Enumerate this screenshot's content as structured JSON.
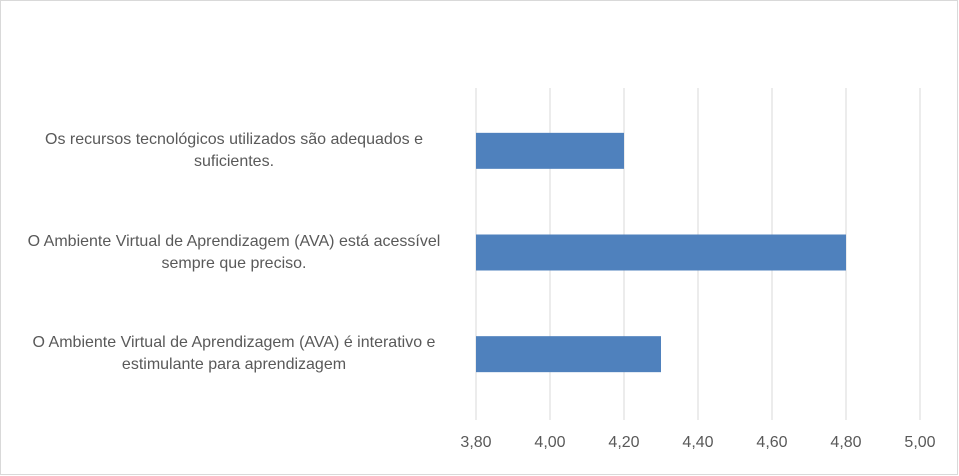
{
  "chart_data": {
    "type": "bar",
    "orientation": "horizontal",
    "categories": [
      "Os recursos tecnológicos utilizados são adequados e suficientes.",
      "O Ambiente Virtual de Aprendizagem (AVA) está acessível sempre que preciso.",
      "O Ambiente Virtual de Aprendizagem (AVA) é interativo e estimulante para aprendizagem"
    ],
    "values": [
      4.2,
      4.8,
      4.3
    ],
    "color": "#4f81bd",
    "xlim": [
      3.8,
      5.0
    ],
    "xticks": [
      {
        "value": 3.8,
        "label": "3,80"
      },
      {
        "value": 4.0,
        "label": "4,00"
      },
      {
        "value": 4.2,
        "label": "4,20"
      },
      {
        "value": 4.4,
        "label": "4,40"
      },
      {
        "value": 4.6,
        "label": "4,60"
      },
      {
        "value": 4.8,
        "label": "4,80"
      },
      {
        "value": 5.0,
        "label": "5,00"
      }
    ],
    "grid": true
  }
}
